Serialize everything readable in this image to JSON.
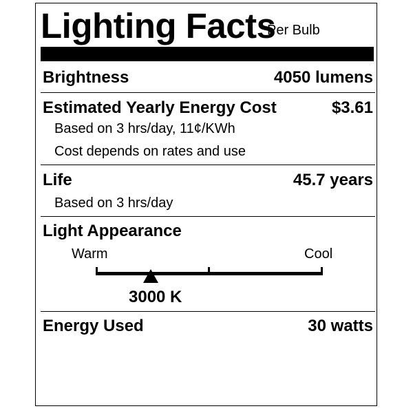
{
  "header": {
    "title": "Lighting Facts",
    "subtitle": "Per Bulb"
  },
  "brightness": {
    "label": "Brightness",
    "value": "4050 lumens"
  },
  "energy_cost": {
    "label": "Estimated Yearly Energy Cost",
    "value": "$3.61",
    "note1": "Based on 3 hrs/day, 11¢/KWh",
    "note2": "Cost depends on rates and use"
  },
  "life": {
    "label": "Life",
    "value": "45.7 years",
    "note": "Based on 3 hrs/day"
  },
  "light_appearance": {
    "label": "Light Appearance",
    "warm_label": "Warm",
    "cool_label": "Cool",
    "marker_label": "3000 K",
    "color_temperature_k": 3000
  },
  "energy_used": {
    "label": "Energy Used",
    "value": "30 watts"
  }
}
